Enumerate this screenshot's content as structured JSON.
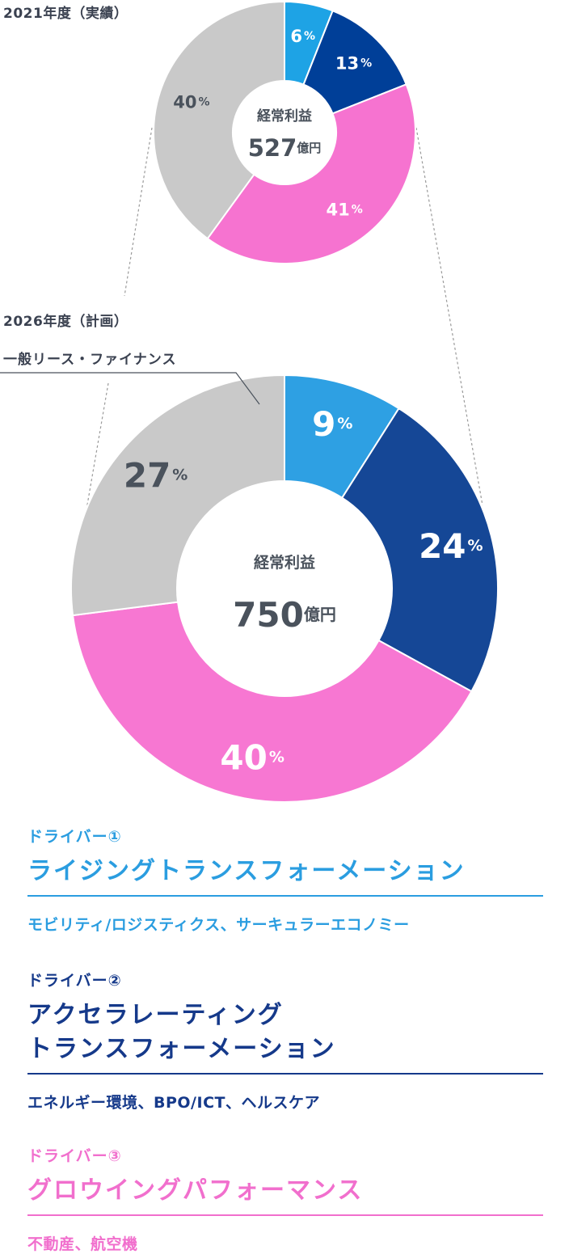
{
  "chart_data": [
    {
      "type": "pie",
      "title": "2021年度（実績）",
      "center_label": "経常利益",
      "center_value": "527",
      "center_unit": "億円",
      "categories": [
        "ドライバー①",
        "ドライバー②",
        "ドライバー③",
        "一般リース・ファイナンス"
      ],
      "values": [
        6,
        13,
        41,
        40
      ],
      "value_suffix": "%",
      "colors": [
        "#1ea3e5",
        "#003f98",
        "#f673d0",
        "#c9c9c9"
      ]
    },
    {
      "type": "pie",
      "title": "2026年度（計画）",
      "center_label": "経常利益",
      "center_value": "750",
      "center_unit": "億円",
      "categories": [
        "ドライバー①",
        "ドライバー②",
        "ドライバー③",
        "一般リース・ファイナンス"
      ],
      "values": [
        9,
        24,
        40,
        27
      ],
      "value_suffix": "%",
      "colors": [
        "#2ea0e3",
        "#154796",
        "#f777d2",
        "#c9c9c9"
      ]
    }
  ],
  "callout_label": "一般リース・ファイナンス",
  "drivers": [
    {
      "label": "ドライバー①",
      "title_lines": [
        "ライジングトランスフォーメーション"
      ],
      "sub": "モビリティ/ロジスティクス、サーキュラーエコノミー",
      "color": "#2a9de0"
    },
    {
      "label": "ドライバー②",
      "title_lines": [
        "アクセラレーティング",
        "トランスフォーメーション"
      ],
      "sub": "エネルギー環境、BPO/ICT、ヘルスケア",
      "color": "#15398a"
    },
    {
      "label": "ドライバー③",
      "title_lines": [
        "グロウイングパフォーマンス"
      ],
      "sub": "不動産、航空機",
      "color": "#f16fcd"
    }
  ]
}
